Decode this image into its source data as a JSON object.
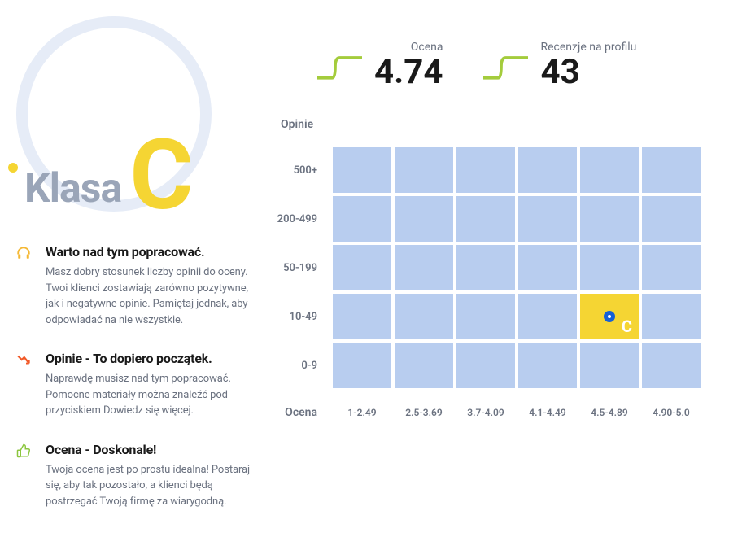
{
  "badge": {
    "prefix": "Klasa",
    "letter": "C",
    "circle_color": "#e6ecf7",
    "dot_color": "#f5d533",
    "prefix_color": "#9aa5b8",
    "letter_color": "#f5d533"
  },
  "tips": [
    {
      "icon": "headphones",
      "icon_color": "#f5b833",
      "title": "Warto nad tym popracować.",
      "text": "Masz dobry stosunek liczby opinii do oceny. Twoi klienci zostawiają zarówno pozytywne, jak i negatywne opinie. Pamiętaj jednak, aby odpowiadać na nie wszystkie."
    },
    {
      "icon": "trend-down",
      "icon_color": "#f15a29",
      "title": "Opinie - To dopiero początek.",
      "text": "Naprawdę musisz nad tym popracować. Pomocne materiały można znaleźć pod przyciskiem Dowiedz się więcej."
    },
    {
      "icon": "thumb-up",
      "icon_color": "#8cc63f",
      "title": "Ocena - Doskonale!",
      "text": "Twoja ocena jest po prostu idealna! Postaraj się, aby tak pozostało, a klienci będą postrzegać Twoją firmę za wiarygodną."
    }
  ],
  "stats": {
    "rating": {
      "label": "Ocena",
      "value": "4.74",
      "spark_color": "#a4cc3c"
    },
    "reviews": {
      "label": "Recenzje na profilu",
      "value": "43",
      "spark_color": "#a4cc3c"
    }
  },
  "heatmap": {
    "y_title": "Opinie",
    "x_title": "Ocena",
    "row_labels": [
      "500+",
      "200-499",
      "50-199",
      "10-49",
      "0-9"
    ],
    "col_labels": [
      "1-2.49",
      "2.5-3.69",
      "3.7-4.09",
      "4.1-4.49",
      "4.5-4.89",
      "4.90-5.0"
    ],
    "cell_color": "#b8cdef",
    "active_cell_color": "#f5d533",
    "marker_color": "#1560d8",
    "active": {
      "row": 3,
      "col": 4,
      "letter": "C"
    }
  }
}
